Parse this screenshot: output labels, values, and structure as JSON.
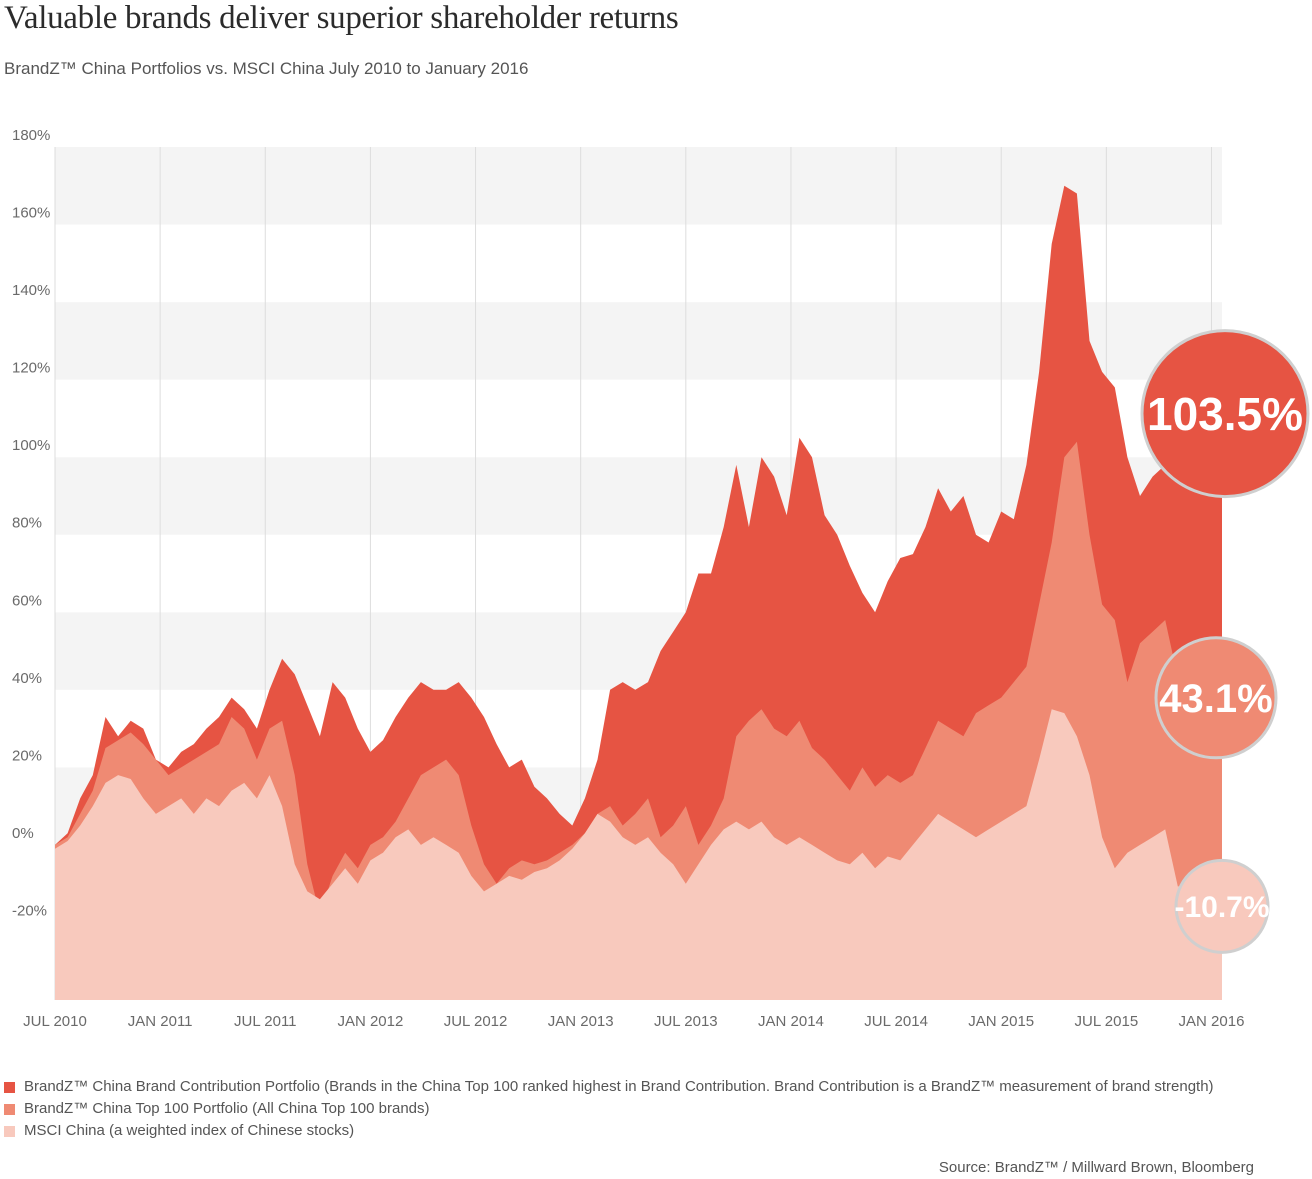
{
  "title": "Valuable brands deliver superior shareholder returns",
  "subtitle": "BrandZ™ China Portfolios vs. MSCI China July 2010 to January 2016",
  "chart_data": {
    "type": "area",
    "ylim": [
      -40,
      180
    ],
    "y_ticks": [
      "180%",
      "160%",
      "140%",
      "120%",
      "100%",
      "80%",
      "60%",
      "40%",
      "20%",
      "0%",
      "-20%"
    ],
    "y_tick_values": [
      180,
      160,
      140,
      120,
      100,
      80,
      60,
      40,
      20,
      0,
      -20
    ],
    "x_ticks": [
      "JUL 2010",
      "JAN 2011",
      "JUL 2011",
      "JAN 2012",
      "JUL 2012",
      "JAN 2013",
      "JUL 2013",
      "JAN 2014",
      "JUL 2014",
      "JAN 2015",
      "JUL 2015",
      "JAN 2016"
    ],
    "x_tick_values": [
      2010.5,
      2011.0,
      2011.5,
      2012.0,
      2012.5,
      2013.0,
      2013.5,
      2014.0,
      2014.5,
      2015.0,
      2015.5,
      2016.0
    ],
    "xlim": [
      2010.5,
      2016.05
    ],
    "series": [
      {
        "name": "BrandZ™ China Brand Contribution Portfolio",
        "color": "#e65443",
        "end_value_label": "103.5%",
        "points": [
          [
            2010.5,
            0
          ],
          [
            2010.56,
            3
          ],
          [
            2010.62,
            12
          ],
          [
            2010.68,
            18
          ],
          [
            2010.74,
            33
          ],
          [
            2010.8,
            28
          ],
          [
            2010.86,
            32
          ],
          [
            2010.92,
            30
          ],
          [
            2010.98,
            22
          ],
          [
            2011.04,
            20
          ],
          [
            2011.1,
            24
          ],
          [
            2011.16,
            26
          ],
          [
            2011.22,
            30
          ],
          [
            2011.28,
            33
          ],
          [
            2011.34,
            38
          ],
          [
            2011.4,
            35
          ],
          [
            2011.46,
            30
          ],
          [
            2011.52,
            40
          ],
          [
            2011.58,
            48
          ],
          [
            2011.64,
            44
          ],
          [
            2011.7,
            36
          ],
          [
            2011.76,
            28
          ],
          [
            2011.82,
            42
          ],
          [
            2011.88,
            38
          ],
          [
            2011.94,
            30
          ],
          [
            2012.0,
            24
          ],
          [
            2012.06,
            27
          ],
          [
            2012.12,
            33
          ],
          [
            2012.18,
            38
          ],
          [
            2012.24,
            42
          ],
          [
            2012.3,
            40
          ],
          [
            2012.36,
            40
          ],
          [
            2012.42,
            42
          ],
          [
            2012.48,
            38
          ],
          [
            2012.54,
            33
          ],
          [
            2012.6,
            26
          ],
          [
            2012.66,
            20
          ],
          [
            2012.72,
            22
          ],
          [
            2012.78,
            15
          ],
          [
            2012.84,
            12
          ],
          [
            2012.9,
            8
          ],
          [
            2012.96,
            5
          ],
          [
            2013.02,
            12
          ],
          [
            2013.08,
            22
          ],
          [
            2013.14,
            40
          ],
          [
            2013.2,
            42
          ],
          [
            2013.26,
            40
          ],
          [
            2013.32,
            42
          ],
          [
            2013.38,
            50
          ],
          [
            2013.44,
            55
          ],
          [
            2013.5,
            60
          ],
          [
            2013.56,
            70
          ],
          [
            2013.62,
            70
          ],
          [
            2013.68,
            82
          ],
          [
            2013.74,
            98
          ],
          [
            2013.8,
            82
          ],
          [
            2013.86,
            100
          ],
          [
            2013.92,
            95
          ],
          [
            2013.98,
            85
          ],
          [
            2014.04,
            105
          ],
          [
            2014.1,
            100
          ],
          [
            2014.16,
            85
          ],
          [
            2014.22,
            80
          ],
          [
            2014.28,
            72
          ],
          [
            2014.34,
            65
          ],
          [
            2014.4,
            60
          ],
          [
            2014.46,
            68
          ],
          [
            2014.52,
            74
          ],
          [
            2014.58,
            75
          ],
          [
            2014.64,
            82
          ],
          [
            2014.7,
            92
          ],
          [
            2014.76,
            86
          ],
          [
            2014.82,
            90
          ],
          [
            2014.88,
            80
          ],
          [
            2014.94,
            78
          ],
          [
            2015.0,
            86
          ],
          [
            2015.06,
            84
          ],
          [
            2015.12,
            98
          ],
          [
            2015.18,
            122
          ],
          [
            2015.24,
            155
          ],
          [
            2015.3,
            170
          ],
          [
            2015.36,
            168
          ],
          [
            2015.42,
            130
          ],
          [
            2015.48,
            122
          ],
          [
            2015.54,
            118
          ],
          [
            2015.6,
            100
          ],
          [
            2015.66,
            90
          ],
          [
            2015.72,
            95
          ],
          [
            2015.78,
            98
          ],
          [
            2015.84,
            103.5
          ],
          [
            2016.05,
            103.5
          ]
        ]
      },
      {
        "name": "BrandZ™ China Top 100 Portfolio",
        "color": "#ef8a73",
        "end_value_label": "43.1%",
        "points": [
          [
            2010.5,
            0
          ],
          [
            2010.56,
            2
          ],
          [
            2010.62,
            8
          ],
          [
            2010.68,
            14
          ],
          [
            2010.74,
            25
          ],
          [
            2010.8,
            27
          ],
          [
            2010.86,
            29
          ],
          [
            2010.92,
            26
          ],
          [
            2010.98,
            22
          ],
          [
            2011.04,
            18
          ],
          [
            2011.1,
            20
          ],
          [
            2011.16,
            22
          ],
          [
            2011.22,
            24
          ],
          [
            2011.28,
            26
          ],
          [
            2011.34,
            33
          ],
          [
            2011.4,
            30
          ],
          [
            2011.46,
            22
          ],
          [
            2011.52,
            30
          ],
          [
            2011.58,
            32
          ],
          [
            2011.64,
            18
          ],
          [
            2011.7,
            -5
          ],
          [
            2011.76,
            -18
          ],
          [
            2011.82,
            -8
          ],
          [
            2011.88,
            -2
          ],
          [
            2011.94,
            -6
          ],
          [
            2012.0,
            0
          ],
          [
            2012.06,
            2
          ],
          [
            2012.12,
            6
          ],
          [
            2012.18,
            12
          ],
          [
            2012.24,
            18
          ],
          [
            2012.3,
            20
          ],
          [
            2012.36,
            22
          ],
          [
            2012.42,
            18
          ],
          [
            2012.48,
            5
          ],
          [
            2012.54,
            -5
          ],
          [
            2012.6,
            -10
          ],
          [
            2012.66,
            -6
          ],
          [
            2012.72,
            -4
          ],
          [
            2012.78,
            -5
          ],
          [
            2012.84,
            -4
          ],
          [
            2012.9,
            -2
          ],
          [
            2012.96,
            0
          ],
          [
            2013.02,
            3
          ],
          [
            2013.08,
            8
          ],
          [
            2013.14,
            10
          ],
          [
            2013.2,
            5
          ],
          [
            2013.26,
            8
          ],
          [
            2013.32,
            12
          ],
          [
            2013.38,
            2
          ],
          [
            2013.44,
            5
          ],
          [
            2013.5,
            10
          ],
          [
            2013.56,
            0
          ],
          [
            2013.62,
            5
          ],
          [
            2013.68,
            12
          ],
          [
            2013.74,
            28
          ],
          [
            2013.8,
            32
          ],
          [
            2013.86,
            35
          ],
          [
            2013.92,
            30
          ],
          [
            2013.98,
            28
          ],
          [
            2014.04,
            32
          ],
          [
            2014.1,
            25
          ],
          [
            2014.16,
            22
          ],
          [
            2014.22,
            18
          ],
          [
            2014.28,
            14
          ],
          [
            2014.34,
            20
          ],
          [
            2014.4,
            15
          ],
          [
            2014.46,
            18
          ],
          [
            2014.52,
            16
          ],
          [
            2014.58,
            18
          ],
          [
            2014.64,
            25
          ],
          [
            2014.7,
            32
          ],
          [
            2014.76,
            30
          ],
          [
            2014.82,
            28
          ],
          [
            2014.88,
            34
          ],
          [
            2014.94,
            36
          ],
          [
            2015.0,
            38
          ],
          [
            2015.06,
            42
          ],
          [
            2015.12,
            46
          ],
          [
            2015.18,
            62
          ],
          [
            2015.24,
            78
          ],
          [
            2015.3,
            100
          ],
          [
            2015.36,
            104
          ],
          [
            2015.42,
            80
          ],
          [
            2015.48,
            62
          ],
          [
            2015.54,
            58
          ],
          [
            2015.6,
            42
          ],
          [
            2015.66,
            52
          ],
          [
            2015.72,
            55
          ],
          [
            2015.78,
            58
          ],
          [
            2015.84,
            43.1
          ],
          [
            2016.05,
            43.1
          ]
        ]
      },
      {
        "name": "MSCI China",
        "color": "#f8c9bd",
        "end_value_label": "-10.7%",
        "points": [
          [
            2010.5,
            -1
          ],
          [
            2010.56,
            1
          ],
          [
            2010.62,
            5
          ],
          [
            2010.68,
            10
          ],
          [
            2010.74,
            16
          ],
          [
            2010.8,
            18
          ],
          [
            2010.86,
            17
          ],
          [
            2010.92,
            12
          ],
          [
            2010.98,
            8
          ],
          [
            2011.04,
            10
          ],
          [
            2011.1,
            12
          ],
          [
            2011.16,
            8
          ],
          [
            2011.22,
            12
          ],
          [
            2011.28,
            10
          ],
          [
            2011.34,
            14
          ],
          [
            2011.4,
            16
          ],
          [
            2011.46,
            12
          ],
          [
            2011.52,
            18
          ],
          [
            2011.58,
            10
          ],
          [
            2011.64,
            -5
          ],
          [
            2011.7,
            -12
          ],
          [
            2011.76,
            -14
          ],
          [
            2011.82,
            -10
          ],
          [
            2011.88,
            -6
          ],
          [
            2011.94,
            -10
          ],
          [
            2012.0,
            -4
          ],
          [
            2012.06,
            -2
          ],
          [
            2012.12,
            2
          ],
          [
            2012.18,
            4
          ],
          [
            2012.24,
            0
          ],
          [
            2012.3,
            2
          ],
          [
            2012.36,
            0
          ],
          [
            2012.42,
            -2
          ],
          [
            2012.48,
            -8
          ],
          [
            2012.54,
            -12
          ],
          [
            2012.6,
            -10
          ],
          [
            2012.66,
            -8
          ],
          [
            2012.72,
            -9
          ],
          [
            2012.78,
            -7
          ],
          [
            2012.84,
            -6
          ],
          [
            2012.9,
            -4
          ],
          [
            2012.96,
            -1
          ],
          [
            2013.02,
            3
          ],
          [
            2013.08,
            8
          ],
          [
            2013.14,
            6
          ],
          [
            2013.2,
            2
          ],
          [
            2013.26,
            0
          ],
          [
            2013.32,
            2
          ],
          [
            2013.38,
            -2
          ],
          [
            2013.44,
            -5
          ],
          [
            2013.5,
            -10
          ],
          [
            2013.56,
            -5
          ],
          [
            2013.62,
            0
          ],
          [
            2013.68,
            4
          ],
          [
            2013.74,
            6
          ],
          [
            2013.8,
            4
          ],
          [
            2013.86,
            6
          ],
          [
            2013.92,
            2
          ],
          [
            2013.98,
            0
          ],
          [
            2014.04,
            2
          ],
          [
            2014.1,
            0
          ],
          [
            2014.16,
            -2
          ],
          [
            2014.22,
            -4
          ],
          [
            2014.28,
            -5
          ],
          [
            2014.34,
            -2
          ],
          [
            2014.4,
            -6
          ],
          [
            2014.46,
            -3
          ],
          [
            2014.52,
            -4
          ],
          [
            2014.58,
            0
          ],
          [
            2014.64,
            4
          ],
          [
            2014.7,
            8
          ],
          [
            2014.76,
            6
          ],
          [
            2014.82,
            4
          ],
          [
            2014.88,
            2
          ],
          [
            2014.94,
            4
          ],
          [
            2015.0,
            6
          ],
          [
            2015.06,
            8
          ],
          [
            2015.12,
            10
          ],
          [
            2015.18,
            22
          ],
          [
            2015.24,
            35
          ],
          [
            2015.3,
            34
          ],
          [
            2015.36,
            28
          ],
          [
            2015.42,
            18
          ],
          [
            2015.48,
            2
          ],
          [
            2015.54,
            -6
          ],
          [
            2015.6,
            -2
          ],
          [
            2015.66,
            0
          ],
          [
            2015.72,
            2
          ],
          [
            2015.78,
            4
          ],
          [
            2015.84,
            -10.7
          ],
          [
            2016.05,
            -10.7
          ]
        ]
      }
    ]
  },
  "legend": [
    {
      "label": "BrandZ™ China Brand Contribution Portfolio (Brands in the China Top 100 ranked highest in Brand Contribution. Brand Contribution is a BrandZ™ measurement of brand strength)",
      "color": "#e65443"
    },
    {
      "label": "BrandZ™ China Top 100 Portfolio (All China Top 100 brands)",
      "color": "#ef8a73"
    },
    {
      "label": "MSCI China (a weighted index of Chinese stocks)",
      "color": "#f8c9bd"
    }
  ],
  "source": "Source: BrandZ™ / Millward Brown, Bloomberg"
}
